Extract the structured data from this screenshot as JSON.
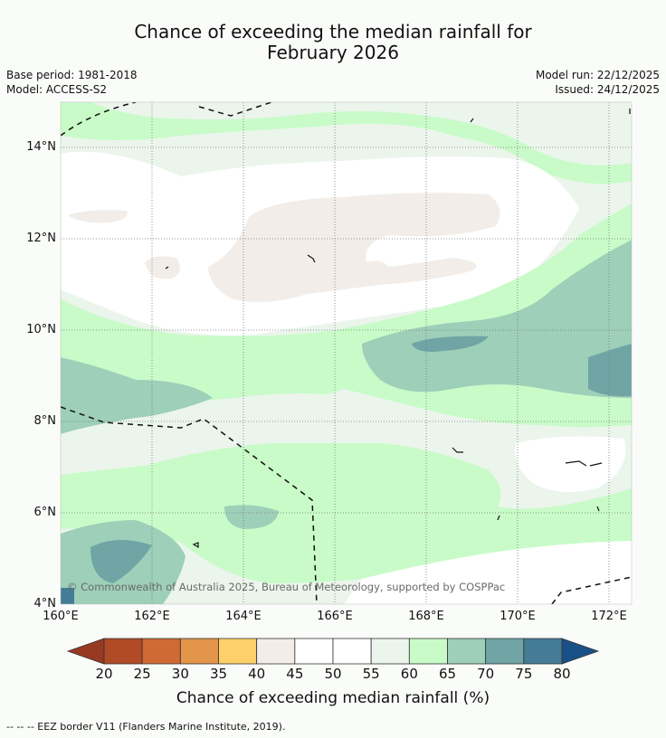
{
  "header": {
    "title_line1": "Chance of exceeding the median rainfall for",
    "title_line2": "February 2026",
    "base_period": "Base period: 1981-2018",
    "model": "Model: ACCESS-S2",
    "model_run": "Model run: 22/12/2025",
    "issued": "Issued: 24/12/2025"
  },
  "map": {
    "lat_labels": [
      "14°N",
      "12°N",
      "10°N",
      "8°N",
      "6°N",
      "4°N"
    ],
    "lon_labels": [
      "160°E",
      "162°E",
      "164°E",
      "166°E",
      "168°E",
      "170°E",
      "172°E"
    ],
    "copyright": "© Commonwealth of Australia 2025, Bureau of Meteorology, supported by COSPPac"
  },
  "colorbar": {
    "ticks": [
      "20",
      "25",
      "30",
      "35",
      "40",
      "45",
      "50",
      "55",
      "60",
      "65",
      "70",
      "75",
      "80"
    ],
    "colors": [
      "#b04a27",
      "#cf6a35",
      "#e3954a",
      "#fdd069",
      "#f2ede8",
      "#ffffff",
      "#ffffff",
      "#ebf5ec",
      "#c8fbc8",
      "#9ecfb8",
      "#70a4a5",
      "#447c98"
    ],
    "low_color": "#983a22",
    "high_color": "#1a5088",
    "label": "Chance of exceeding median rainfall (%)"
  },
  "footer": {
    "eez_note": "--  --  -- EEZ border V11 (Flanders Marine Institute, 2019)."
  }
}
